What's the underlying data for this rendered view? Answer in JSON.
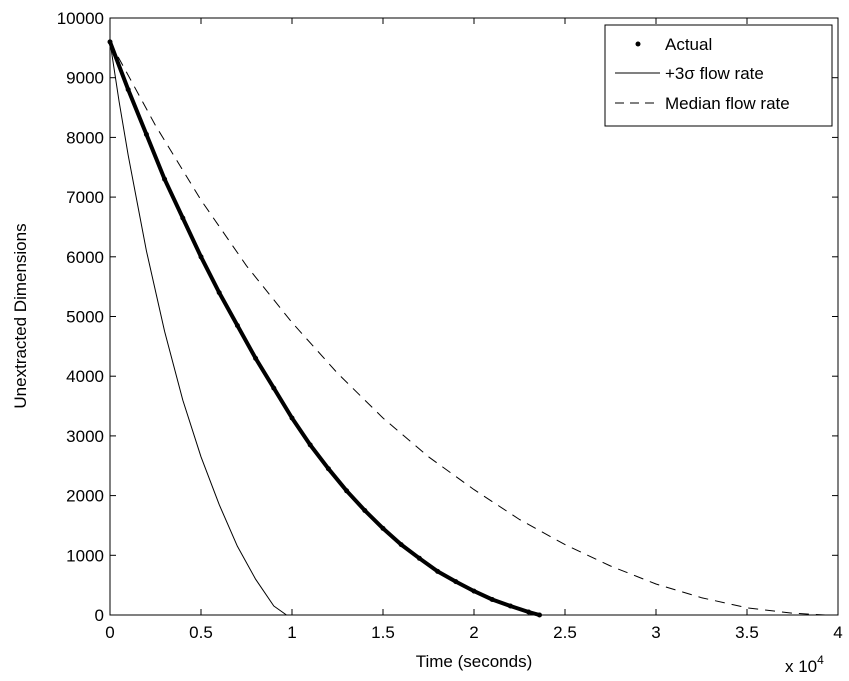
{
  "chart_data": {
    "type": "line",
    "title": "",
    "xlabel": "Time (seconds)",
    "ylabel": "Unextracted Dimensions",
    "x_multiplier_label": "x 10",
    "x_multiplier_exponent": "4",
    "xlim": [
      0,
      4
    ],
    "ylim": [
      0,
      10000
    ],
    "xticks": [
      0,
      0.5,
      1,
      1.5,
      2,
      2.5,
      3,
      3.5,
      4
    ],
    "xtick_labels": [
      "0",
      "0.5",
      "1",
      "1.5",
      "2",
      "2.5",
      "3",
      "3.5",
      "4"
    ],
    "yticks": [
      0,
      1000,
      2000,
      3000,
      4000,
      5000,
      6000,
      7000,
      8000,
      9000,
      10000
    ],
    "ytick_labels": [
      "0",
      "1000",
      "2000",
      "3000",
      "4000",
      "5000",
      "6000",
      "7000",
      "8000",
      "9000",
      "10000"
    ],
    "grid": false,
    "legend_position": "top-right",
    "series": [
      {
        "name": "Actual",
        "style": "dots",
        "x": [
          0,
          0.1,
          0.2,
          0.3,
          0.4,
          0.5,
          0.6,
          0.7,
          0.8,
          0.9,
          1.0,
          1.1,
          1.2,
          1.3,
          1.4,
          1.5,
          1.6,
          1.7,
          1.8,
          1.9,
          2.0,
          2.1,
          2.2,
          2.3,
          2.36
        ],
        "y": [
          9600,
          8800,
          8050,
          7300,
          6650,
          6000,
          5400,
          4850,
          4300,
          3800,
          3300,
          2850,
          2450,
          2080,
          1750,
          1450,
          1180,
          950,
          730,
          560,
          400,
          260,
          150,
          50,
          0
        ]
      },
      {
        "name": "+3σ flow rate",
        "style": "solid",
        "x": [
          0,
          0.05,
          0.1,
          0.15,
          0.2,
          0.3,
          0.4,
          0.5,
          0.6,
          0.7,
          0.8,
          0.9,
          0.97
        ],
        "y": [
          9600,
          8600,
          7700,
          6900,
          6100,
          4750,
          3600,
          2650,
          1850,
          1150,
          600,
          150,
          0
        ]
      },
      {
        "name": "Median flow rate",
        "style": "dashed",
        "x": [
          0,
          0.25,
          0.5,
          0.75,
          1.0,
          1.25,
          1.5,
          1.75,
          2.0,
          2.25,
          2.5,
          2.75,
          3.0,
          3.25,
          3.5,
          3.75,
          3.93
        ],
        "y": [
          9600,
          8200,
          6950,
          5850,
          4900,
          4050,
          3300,
          2650,
          2100,
          1600,
          1180,
          820,
          520,
          290,
          120,
          30,
          0
        ]
      }
    ]
  }
}
